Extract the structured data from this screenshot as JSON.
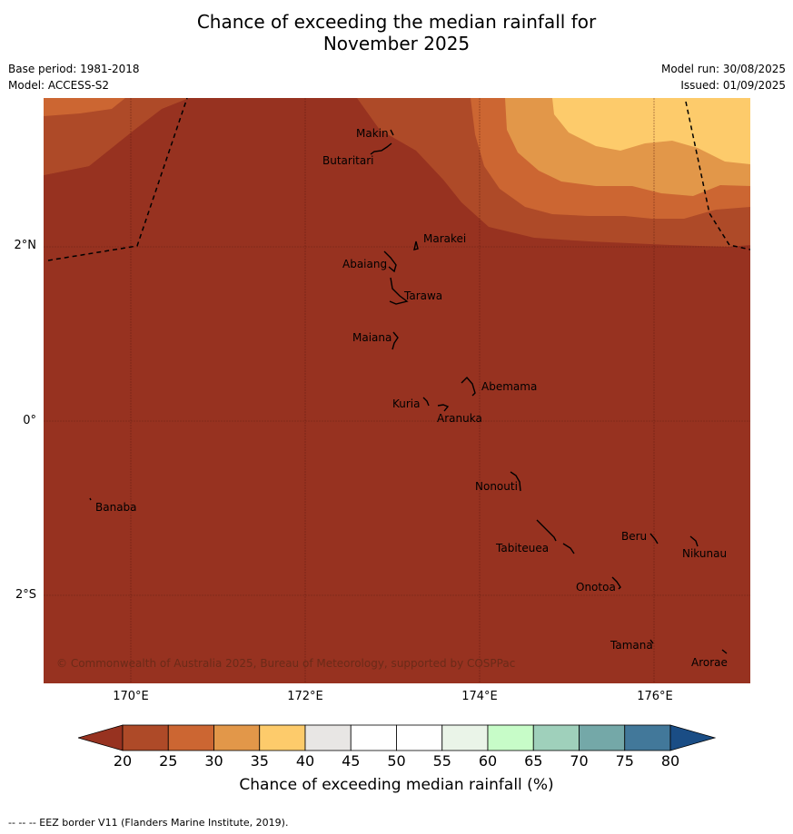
{
  "title_line1": "Chance of exceeding the median rainfall for",
  "title_line2": "November 2025",
  "base_period": "Base period: 1981-2018",
  "model": "Model: ACCESS-S2",
  "model_run": "Model run: 30/08/2025",
  "issued": "Issued: 01/09/2025",
  "latitude_labels": [
    "2°N",
    "0°",
    "2°S"
  ],
  "longitude_labels": [
    "170°E",
    "172°E",
    "174°E",
    "176°E"
  ],
  "places": [
    "Makin",
    "Butaritari",
    "Marakei",
    "Abaiang",
    "Tarawa",
    "Maiana",
    "Abemama",
    "Kuria",
    "Aranuka",
    "Nonouti",
    "Banaba",
    "Beru",
    "Nikunau",
    "Tabiteuea",
    "Onotoa",
    "Tamana",
    "Arorae"
  ],
  "copyright": "© Commonwealth of Australia 2025, Bureau of Meteorology, supported by COSPPac",
  "colorbar": {
    "levels": [
      "20",
      "25",
      "30",
      "35",
      "40",
      "45",
      "50",
      "55",
      "60",
      "65",
      "70",
      "75",
      "80"
    ],
    "colors": [
      "#973220",
      "#ae4a28",
      "#cc6632",
      "#e29749",
      "#fdcb6b",
      "#e8e6e4",
      "#ffffff",
      "#ffffff",
      "#eaf4e8",
      "#c7fcc8",
      "#9fd0bb",
      "#74a8a8",
      "#42789a",
      "#1a4d85"
    ],
    "title": "Chance of exceeding median rainfall (%)"
  },
  "footer": "--  --  -- EEZ border V11 (Flanders Marine Institute, 2019).",
  "icons": [
    "island-outline-icon",
    "eez-border-dash-icon"
  ]
}
